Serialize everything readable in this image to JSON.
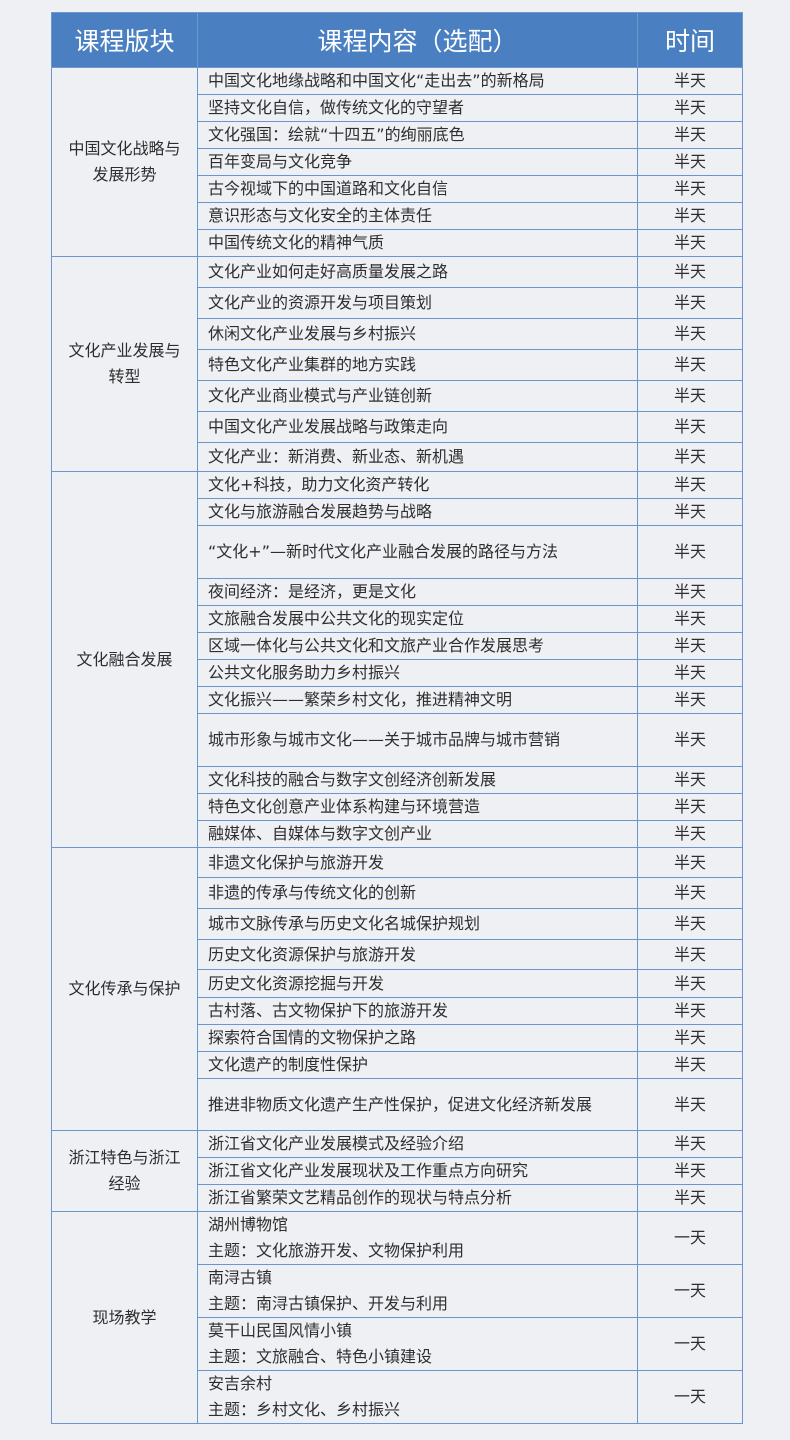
{
  "header": {
    "category": "课程版块",
    "content": "课程内容（选配）",
    "time": "时间"
  },
  "groups": [
    {
      "category": "中国文化战略与发展形势",
      "rows": [
        {
          "content": "中国文化地缘战略和中国文化“走出去”的新格局",
          "time": "半天"
        },
        {
          "content": "坚持文化自信，做传统文化的守望者",
          "time": "半天"
        },
        {
          "content": "文化强国：绘就“十四五”的绚丽底色",
          "time": "半天"
        },
        {
          "content": "百年变局与文化竞争",
          "time": "半天"
        },
        {
          "content": "古今视域下的中国道路和文化自信",
          "time": "半天"
        },
        {
          "content": "意识形态与文化安全的主体责任",
          "time": "半天"
        },
        {
          "content": "中国传统文化的精神气质",
          "time": "半天"
        }
      ]
    },
    {
      "category": "文化产业发展与转型",
      "rows": [
        {
          "content": "文化产业如何走好高质量发展之路",
          "time": "半天"
        },
        {
          "content": "文化产业的资源开发与项目策划",
          "time": "半天"
        },
        {
          "content": "休闲文化产业发展与乡村振兴",
          "time": "半天"
        },
        {
          "content": "特色文化产业集群的地方实践",
          "time": "半天"
        },
        {
          "content": "文化产业商业模式与产业链创新",
          "time": "半天"
        },
        {
          "content": "中国文化产业发展战略与政策走向",
          "time": "半天"
        },
        {
          "content": "文化产业：新消费、新业态、新机遇",
          "time": "半天"
        }
      ]
    },
    {
      "category": "文化融合发展",
      "rows": [
        {
          "content": "文化+科技，助力文化资产转化",
          "time": "半天"
        },
        {
          "content": "文化与旅游融合发展趋势与战略",
          "time": "半天"
        },
        {
          "content": "“文化+”—新时代文化产业融合发展的路径与方法",
          "time": "半天"
        },
        {
          "content": "夜间经济：是经济，更是文化",
          "time": "半天"
        },
        {
          "content": "文旅融合发展中公共文化的现实定位",
          "time": "半天"
        },
        {
          "content": "区域一体化与公共文化和文旅产业合作发展思考",
          "time": "半天"
        },
        {
          "content": "公共文化服务助力乡村振兴",
          "time": "半天"
        },
        {
          "content": "文化振兴——繁荣乡村文化，推进精神文明",
          "time": "半天"
        },
        {
          "content": "城市形象与城市文化——关于城市品牌与城市营销",
          "time": "半天"
        },
        {
          "content": "文化科技的融合与数字文创经济创新发展",
          "time": "半天"
        },
        {
          "content": "特色文化创意产业体系构建与环境营造",
          "time": "半天"
        },
        {
          "content": "融媒体、自媒体与数字文创产业",
          "time": "半天"
        }
      ]
    },
    {
      "category": "文化传承与保护",
      "rows": [
        {
          "content": "非遗文化保护与旅游开发",
          "time": "半天"
        },
        {
          "content": "非遗的传承与传统文化的创新",
          "time": "半天"
        },
        {
          "content": "城市文脉传承与历史文化名城保护规划",
          "time": "半天"
        },
        {
          "content": "历史文化资源保护与旅游开发",
          "time": "半天"
        },
        {
          "content": "历史文化资源挖掘与开发",
          "time": "半天"
        },
        {
          "content": "古村落、古文物保护下的旅游开发",
          "time": "半天"
        },
        {
          "content": "探索符合国情的文物保护之路",
          "time": "半天"
        },
        {
          "content": "文化遗产的制度性保护",
          "time": "半天"
        },
        {
          "content": "推进非物质文化遗产生产性保护，促进文化经济新发展",
          "time": "半天"
        }
      ]
    },
    {
      "category": "浙江特色与浙江经验",
      "rows": [
        {
          "content": "浙江省文化产业发展模式及经验介绍",
          "time": "半天"
        },
        {
          "content": "浙江省文化产业发展现状及工作重点方向研究",
          "time": "半天"
        },
        {
          "content": "浙江省繁荣文艺精品创作的现状与特点分析",
          "time": "半天"
        }
      ]
    },
    {
      "category": "现场教学",
      "rows": [
        {
          "content": "湖州博物馆",
          "subtitle": "主题：文化旅游开发、文物保护利用",
          "time": "一天"
        },
        {
          "content": "南浔古镇",
          "subtitle": "主题：南浔古镇保护、开发与利用",
          "time": "一天"
        },
        {
          "content": "莫干山民国风情小镇",
          "subtitle": "主题：文旅融合、特色小镇建设",
          "time": "一天"
        },
        {
          "content": "安吉余村",
          "subtitle": "主题：乡村文化、乡村振兴",
          "time": "一天"
        }
      ]
    }
  ]
}
